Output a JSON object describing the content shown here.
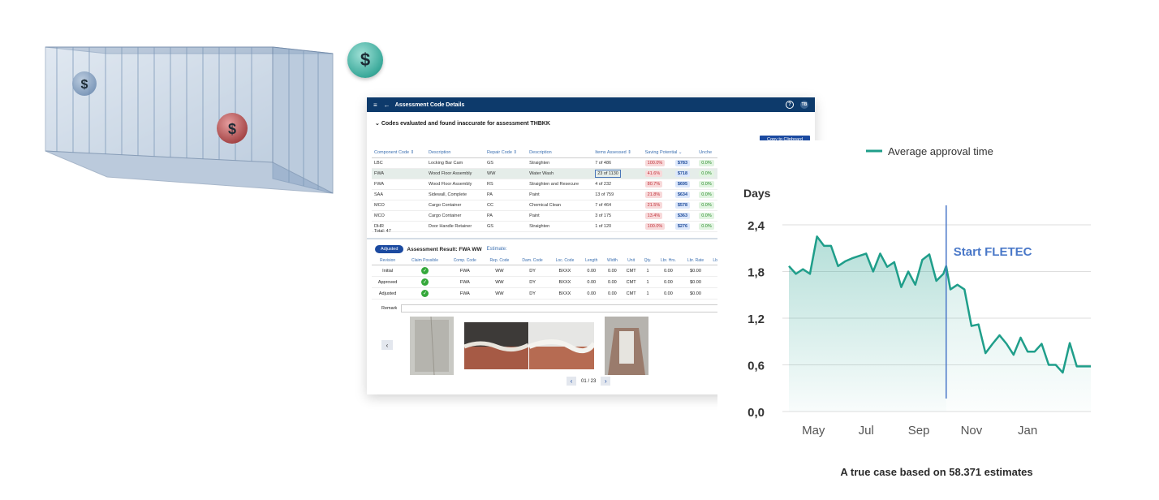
{
  "illustration": {
    "coin_symbol": "$"
  },
  "app": {
    "title": "Assessment Code Details",
    "help_icon": "?",
    "avatar": "TB",
    "section_title": "Codes evaluated and found inaccurate for assessment THBKK",
    "copy_button": "Copy to Clipboard",
    "codes_columns": [
      "Component Code ⇕",
      "Description",
      "Repair Code ⇕",
      "Description",
      "Items Assessed ⇕",
      "Saving Potential ⌄",
      "Unche"
    ],
    "codes_rows": [
      [
        "LBC",
        "Locking Bar Cam",
        "GS",
        "Straighten",
        "7 of 486",
        "100.0%",
        "$783",
        "0.0%"
      ],
      [
        "FWA",
        "Wood Floor Assembly",
        "WW",
        "Water Wash",
        "23 of 1130",
        "41.6%",
        "$718",
        "0.0%"
      ],
      [
        "FWA",
        "Wood Floor Assembly",
        "RS",
        "Straighten and Resecure",
        "4 of 232",
        "80.7%",
        "$695",
        "0.0%"
      ],
      [
        "SAA",
        "Sidewall, Complete",
        "PA",
        "Paint",
        "13 of 759",
        "21.8%",
        "$634",
        "0.0%"
      ],
      [
        "MCO",
        "Cargo Container",
        "CC",
        "Chemical Clean",
        "7 of 464",
        "21.5%",
        "$578",
        "0.0%"
      ],
      [
        "MCO",
        "Cargo Container",
        "PA",
        "Paint",
        "3 of 175",
        "13.4%",
        "$363",
        "0.0%"
      ],
      [
        "DHR",
        "Door Handle Retainer",
        "GS",
        "Straighten",
        "1 of 120",
        "100.0%",
        "$276",
        "0.0%"
      ]
    ],
    "total": "Total: 47",
    "adjusted_pill": "Adjusted",
    "adjusted_title": "Assessment Result: FWA WW",
    "estimate_label": "Estimate:",
    "revision_columns": [
      "Revision",
      "Claim Possible",
      "Comp. Code",
      "Rep. Code",
      "Dam. Code",
      "Loc. Code",
      "Length",
      "Width",
      "Unit",
      "Qty.",
      "Lbr. Hrs.",
      "Lbr. Rate",
      "Lb"
    ],
    "revision_rows": [
      [
        "Initial",
        "✓",
        "FWA",
        "WW",
        "DY",
        "BXXX",
        "0.00",
        "0.00",
        "CMT",
        "1",
        "0.00",
        "$0.00"
      ],
      [
        "Approved",
        "✓",
        "FWA",
        "WW",
        "DY",
        "BXXX",
        "0.00",
        "0.00",
        "CMT",
        "1",
        "0.00",
        "$0.00"
      ],
      [
        "Adjusted",
        "✓",
        "FWA",
        "WW",
        "DY",
        "BXXX",
        "0.00",
        "0.00",
        "CMT",
        "1",
        "0.00",
        "$0.00"
      ]
    ],
    "remark_label": "Remark",
    "pager": "01 / 23"
  },
  "chart_data": {
    "type": "line",
    "legend": "Average approval time",
    "ylabel": "Days",
    "yticks": [
      "2,4",
      "1,8",
      "1,2",
      "0,6",
      "0,0"
    ],
    "xticks": [
      "May",
      "Jul",
      "Sep",
      "Nov",
      "Jan"
    ],
    "ylim": [
      0,
      2.4
    ],
    "annotation": "Start FLETEC",
    "annotation_x": 22.4,
    "x": [
      0,
      1,
      2,
      3,
      4,
      5,
      6,
      7,
      8,
      9,
      10,
      11,
      12,
      13,
      14,
      15,
      16,
      17,
      18,
      19,
      20,
      21,
      22,
      22.4,
      23,
      24,
      25,
      26,
      27,
      28,
      29,
      30,
      31,
      32,
      33,
      34,
      35,
      36,
      37,
      38,
      39,
      40,
      41,
      42,
      43
    ],
    "values": [
      1.87,
      1.77,
      1.83,
      1.77,
      2.25,
      2.13,
      2.13,
      1.87,
      1.93,
      1.97,
      2.0,
      2.03,
      1.8,
      2.03,
      1.86,
      1.92,
      1.6,
      1.8,
      1.63,
      1.95,
      2.02,
      1.68,
      1.77,
      1.87,
      1.57,
      1.63,
      1.57,
      1.1,
      1.12,
      0.75,
      0.87,
      0.98,
      0.87,
      0.73,
      0.95,
      0.77,
      0.77,
      0.87,
      0.6,
      0.6,
      0.5,
      0.88,
      0.58,
      0.58,
      0.58
    ],
    "caption": "A true case based on 58.371 estimates"
  }
}
